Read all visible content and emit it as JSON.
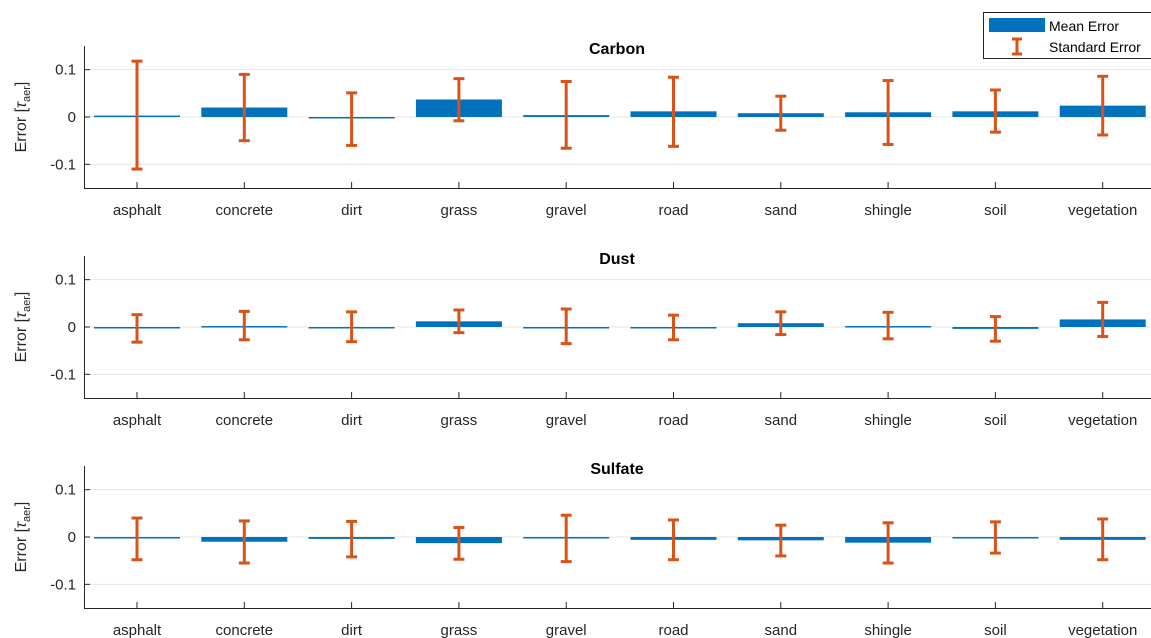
{
  "colors": {
    "bar": "#0072BD",
    "error": "#D95319",
    "grid": "#e6e6e6",
    "axis": "#262626"
  },
  "legend": {
    "mean_label": "Mean Error",
    "std_label": "Standard Error",
    "position": "top-right"
  },
  "chart_data": [
    {
      "type": "bar",
      "title": "Carbon",
      "ylabel_main": "Error [",
      "ylabel_tau": "τ",
      "ylabel_sub": "aer",
      "ylabel_close": "]",
      "ylim": [
        -0.15,
        0.15
      ],
      "yticks": [
        0.1,
        0,
        -0.1
      ],
      "ytick_labels": [
        "0.1",
        "0",
        "-0.1"
      ],
      "grid": true,
      "categories": [
        "asphalt",
        "concrete",
        "dirt",
        "grass",
        "gravel",
        "road",
        "sand",
        "shingle",
        "soil",
        "vegetation"
      ],
      "values": [
        0.003,
        0.02,
        -0.003,
        0.037,
        0.004,
        0.012,
        0.008,
        0.01,
        0.012,
        0.024
      ],
      "err_low": [
        -0.11,
        -0.05,
        -0.06,
        -0.008,
        -0.066,
        -0.062,
        -0.028,
        -0.058,
        -0.032,
        -0.038
      ],
      "err_high": [
        0.118,
        0.09,
        0.051,
        0.081,
        0.075,
        0.084,
        0.044,
        0.077,
        0.057,
        0.086
      ]
    },
    {
      "type": "bar",
      "title": "Dust",
      "ylabel_main": "Error [",
      "ylabel_tau": "τ",
      "ylabel_sub": "aer",
      "ylabel_close": "]",
      "ylim": [
        -0.15,
        0.15
      ],
      "yticks": [
        0.1,
        0,
        -0.1
      ],
      "ytick_labels": [
        "0.1",
        "0",
        "-0.1"
      ],
      "grid": true,
      "categories": [
        "asphalt",
        "concrete",
        "dirt",
        "grass",
        "gravel",
        "road",
        "sand",
        "shingle",
        "soil",
        "vegetation"
      ],
      "values": [
        -0.002,
        0.002,
        0.0,
        0.012,
        0.0,
        -0.001,
        0.008,
        0.002,
        -0.004,
        0.016
      ],
      "err_low": [
        -0.032,
        -0.027,
        -0.031,
        -0.012,
        -0.035,
        -0.027,
        -0.016,
        -0.025,
        -0.03,
        -0.02
      ],
      "err_high": [
        0.026,
        0.033,
        0.032,
        0.036,
        0.038,
        0.025,
        0.032,
        0.031,
        0.022,
        0.052
      ]
    },
    {
      "type": "bar",
      "title": "Sulfate",
      "ylabel_main": "Error [",
      "ylabel_tau": "τ",
      "ylabel_sub": "aer",
      "ylabel_close": "]",
      "ylim": [
        -0.15,
        0.15
      ],
      "yticks": [
        0.1,
        0,
        -0.1
      ],
      "ytick_labels": [
        "0.1",
        "0",
        "-0.1"
      ],
      "grid": true,
      "categories": [
        "asphalt",
        "concrete",
        "dirt",
        "grass",
        "gravel",
        "road",
        "sand",
        "shingle",
        "soil",
        "vegetation"
      ],
      "values": [
        -0.003,
        -0.01,
        -0.004,
        -0.013,
        -0.003,
        -0.006,
        -0.007,
        -0.012,
        -0.001,
        -0.006
      ],
      "err_low": [
        -0.048,
        -0.055,
        -0.042,
        -0.047,
        -0.052,
        -0.048,
        -0.04,
        -0.055,
        -0.034,
        -0.048
      ],
      "err_high": [
        0.04,
        0.034,
        0.033,
        0.02,
        0.046,
        0.036,
        0.025,
        0.03,
        0.032,
        0.038
      ]
    }
  ]
}
